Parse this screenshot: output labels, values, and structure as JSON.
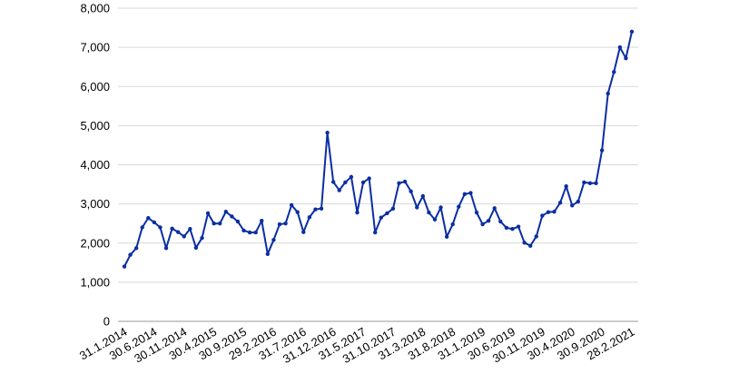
{
  "chart_data": {
    "type": "line",
    "categories": [
      "31.1.2014",
      null,
      null,
      null,
      null,
      "30.6.2014",
      null,
      null,
      null,
      null,
      "30.11.2014",
      null,
      null,
      null,
      null,
      "30.4.2015",
      null,
      null,
      null,
      null,
      "30.9.2015",
      null,
      null,
      null,
      null,
      "29.2.2016",
      null,
      null,
      null,
      null,
      "31.7.2016",
      null,
      null,
      null,
      null,
      "31.12.2016",
      null,
      null,
      null,
      null,
      "31.5.2017",
      null,
      null,
      null,
      null,
      "31.10.2017",
      null,
      null,
      null,
      null,
      "31.3.2018",
      null,
      null,
      null,
      null,
      "31.8.2018",
      null,
      null,
      null,
      null,
      "31.1.2019",
      null,
      null,
      null,
      null,
      "30.6.2019",
      null,
      null,
      null,
      null,
      "30.11.2019",
      null,
      null,
      null,
      null,
      "30.4.2020",
      null,
      null,
      null,
      null,
      "30.9.2020",
      null,
      null,
      null,
      null,
      "28.2.2021"
    ],
    "values": [
      1400,
      1700,
      1870,
      2400,
      2640,
      2530,
      2400,
      1870,
      2370,
      2280,
      2170,
      2360,
      1880,
      2130,
      2760,
      2500,
      2500,
      2800,
      2680,
      2550,
      2320,
      2270,
      2270,
      2570,
      1720,
      2080,
      2480,
      2500,
      2970,
      2790,
      2280,
      2660,
      2860,
      2880,
      4820,
      3560,
      3350,
      3550,
      3690,
      2780,
      3550,
      3650,
      2270,
      2650,
      2760,
      2880,
      3530,
      3570,
      3320,
      2910,
      3200,
      2780,
      2600,
      2910,
      2160,
      2480,
      2930,
      3250,
      3280,
      2780,
      2480,
      2570,
      2890,
      2550,
      2390,
      2360,
      2420,
      2010,
      1930,
      2170,
      2700,
      2790,
      2800,
      3030,
      3450,
      2960,
      3060,
      3550,
      3530,
      3530,
      4370,
      5820,
      6370,
      7000,
      6720,
      7400
    ],
    "color": "#0b2ea3",
    "ylim": [
      0,
      8000
    ],
    "yticks": [
      0,
      {
        "value": 1000,
        "label": "1,000"
      },
      {
        "value": 2000,
        "label": "2,000"
      },
      {
        "value": 3000,
        "label": "3,000"
      },
      {
        "value": 4000,
        "label": "4,000"
      },
      {
        "value": 5000,
        "label": "5,000"
      },
      {
        "value": 6000,
        "label": "6,000"
      },
      {
        "value": 7000,
        "label": "7,000"
      },
      {
        "value": 8000,
        "label": "8,000"
      }
    ],
    "grid": true
  }
}
